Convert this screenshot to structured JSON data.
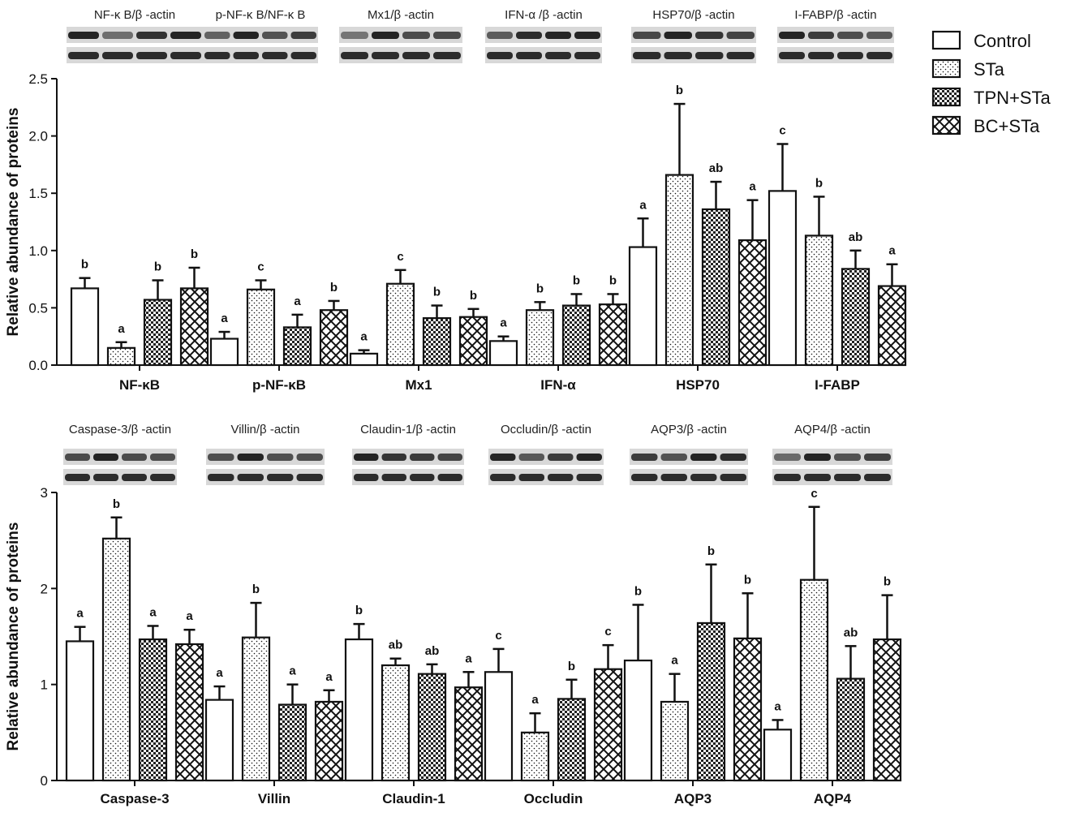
{
  "chart_data": [
    {
      "type": "bar",
      "panel": "top",
      "title": "",
      "xlabel": "",
      "ylabel": "Relative abundance of proteins",
      "ylim": [
        0,
        2.5
      ],
      "yticks": [
        "0.0",
        "0.5",
        "1.0",
        "1.5",
        "2.0",
        "2.5"
      ],
      "ytick_values": [
        0,
        0.5,
        1.0,
        1.5,
        2.0,
        2.5
      ],
      "categories": [
        "NF-κB",
        "p-NF-κB",
        "Mx1",
        "IFN-α",
        "HSP70",
        "I-FABP"
      ],
      "blot_labels": [
        "NF-κ B/β -actin",
        "p-NF-κ B/NF-κ B",
        "Mx1/β -actin",
        "IFN-α /β -actin",
        "HSP70/β -actin",
        "I-FABP/β -actin"
      ],
      "series": [
        {
          "name": "Control",
          "values": [
            0.67,
            0.23,
            0.1,
            0.21,
            1.03,
            1.52
          ],
          "errors": [
            0.09,
            0.06,
            0.03,
            0.04,
            0.25,
            0.41
          ],
          "sig": [
            "b",
            "a",
            "a",
            "a",
            "a",
            "c"
          ]
        },
        {
          "name": "STa",
          "values": [
            0.15,
            0.66,
            0.71,
            0.48,
            1.66,
            1.13
          ],
          "errors": [
            0.05,
            0.08,
            0.12,
            0.07,
            0.62,
            0.34
          ],
          "sig": [
            "a",
            "c",
            "c",
            "b",
            "b",
            "b"
          ]
        },
        {
          "name": "TPN+STa",
          "values": [
            0.57,
            0.33,
            0.41,
            0.52,
            1.36,
            0.84
          ],
          "errors": [
            0.17,
            0.11,
            0.11,
            0.1,
            0.24,
            0.16
          ],
          "sig": [
            "b",
            "a",
            "b",
            "b",
            "ab",
            "ab"
          ]
        },
        {
          "name": "BC+STa",
          "values": [
            0.67,
            0.48,
            0.42,
            0.53,
            1.09,
            0.69
          ],
          "errors": [
            0.18,
            0.08,
            0.07,
            0.09,
            0.35,
            0.19
          ],
          "sig": [
            "b",
            "b",
            "b",
            "b",
            "a",
            "a"
          ]
        }
      ]
    },
    {
      "type": "bar",
      "panel": "bottom",
      "title": "",
      "xlabel": "",
      "ylabel": "Relative abundance of proteins",
      "ylim": [
        0,
        3
      ],
      "yticks": [
        "0",
        "1",
        "2",
        "3"
      ],
      "ytick_values": [
        0,
        1,
        2,
        3
      ],
      "categories": [
        "Caspase-3",
        "Villin",
        "Claudin-1",
        "Occludin",
        "AQP3",
        "AQP4"
      ],
      "blot_labels": [
        "Caspase-3/β -actin",
        "Villin/β -actin",
        "Claudin-1/β -actin",
        "Occludin/β -actin",
        "AQP3/β -actin",
        "AQP4/β -actin"
      ],
      "series": [
        {
          "name": "Control",
          "values": [
            1.45,
            0.84,
            1.47,
            1.13,
            1.25,
            0.53
          ],
          "errors": [
            0.15,
            0.14,
            0.16,
            0.24,
            0.58,
            0.1
          ],
          "sig": [
            "a",
            "a",
            "b",
            "c",
            "b",
            "a"
          ]
        },
        {
          "name": "STa",
          "values": [
            2.52,
            1.49,
            1.2,
            0.5,
            0.82,
            2.09
          ],
          "errors": [
            0.22,
            0.36,
            0.07,
            0.2,
            0.29,
            0.76
          ],
          "sig": [
            "b",
            "b",
            "ab",
            "a",
            "a",
            "c"
          ]
        },
        {
          "name": "TPN+STa",
          "values": [
            1.47,
            0.79,
            1.11,
            0.85,
            1.64,
            1.06
          ],
          "errors": [
            0.14,
            0.21,
            0.1,
            0.2,
            0.61,
            0.34
          ],
          "sig": [
            "a",
            "a",
            "ab",
            "b",
            "b",
            "ab"
          ]
        },
        {
          "name": "BC+STa",
          "values": [
            1.42,
            0.82,
            0.97,
            1.16,
            1.48,
            1.47
          ],
          "errors": [
            0.15,
            0.12,
            0.16,
            0.25,
            0.47,
            0.46
          ],
          "sig": [
            "a",
            "a",
            "a",
            "c",
            "b",
            "b"
          ]
        }
      ]
    }
  ],
  "legend": {
    "entries": [
      "Control",
      "STa",
      "TPN+STa",
      "BC+STa"
    ],
    "position": "top-right"
  },
  "colors": {
    "ink": "#111111",
    "background": "#ffffff",
    "blot_band": "#1a1a1a",
    "blot_bg": "#d8d8d8"
  }
}
